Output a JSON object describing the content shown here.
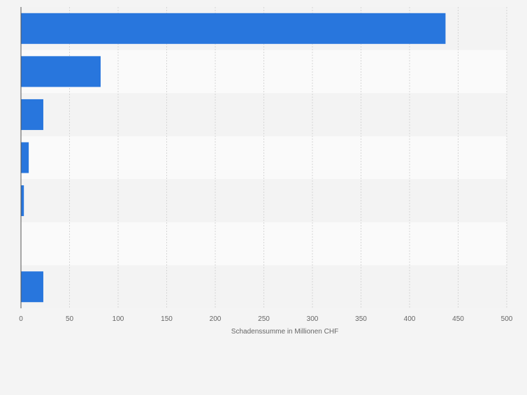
{
  "chart_data": {
    "type": "bar",
    "orientation": "horizontal",
    "categories": [
      "",
      "",
      "",
      "",
      "",
      "",
      ""
    ],
    "values": [
      437,
      82,
      23,
      8,
      3,
      0,
      23
    ],
    "xlabel": "Schadenssumme in Millionen CHF",
    "ylabel": "",
    "xlim": [
      0,
      500
    ],
    "xticks": [
      0,
      50,
      100,
      150,
      200,
      250,
      300,
      350,
      400,
      450,
      500
    ],
    "xtick_labels": [
      "0",
      "50",
      "100",
      "150",
      "200",
      "250",
      "300",
      "350",
      "400",
      "450",
      "500"
    ],
    "grid": "vertical dashed",
    "legend": "none",
    "bar_color": "#2876dd",
    "band_colors": [
      "#f3f3f3",
      "#fafafa"
    ]
  }
}
